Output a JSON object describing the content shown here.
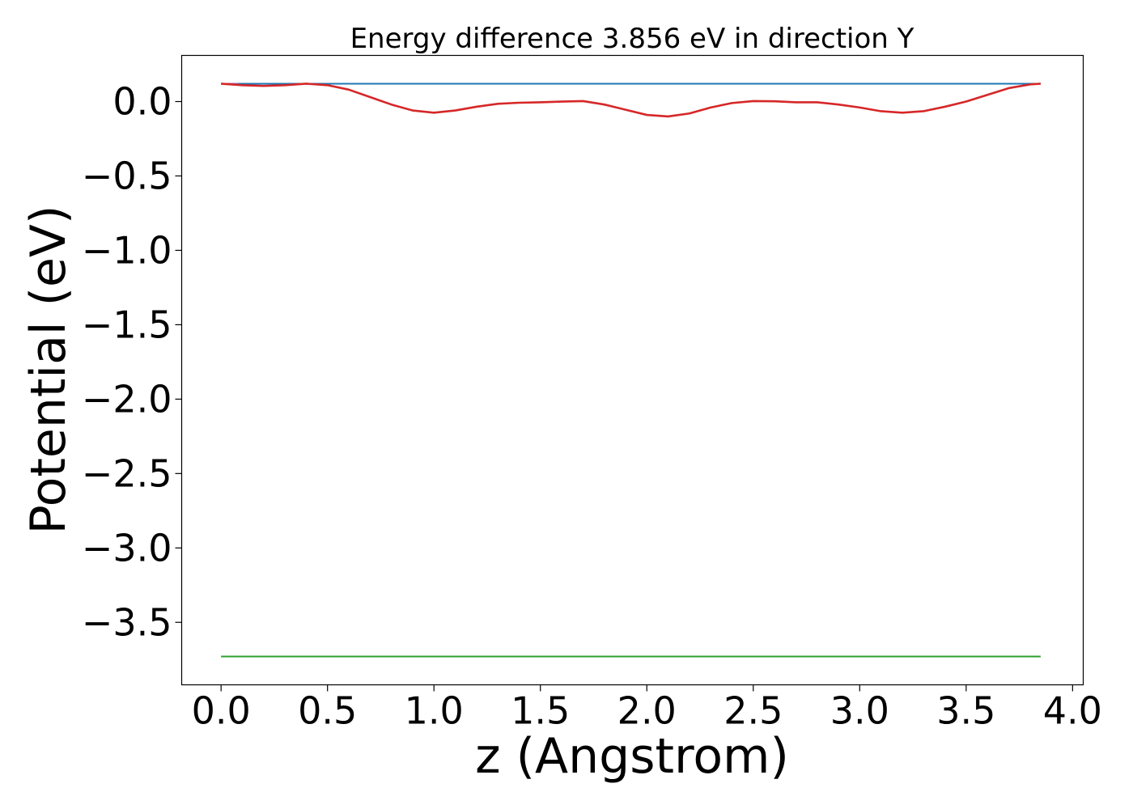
{
  "chart_data": {
    "type": "line",
    "title": "Energy difference 3.856 eV in direction Y",
    "xlabel": "z (Angstrom)",
    "ylabel": "Potential (eV)",
    "xlim": [
      -0.185,
      4.05
    ],
    "ylim": [
      -3.92,
      0.31
    ],
    "xticks": [
      0.0,
      0.5,
      1.0,
      1.5,
      2.0,
      2.5,
      3.0,
      3.5,
      4.0
    ],
    "xtick_labels": [
      "0.0",
      "0.5",
      "1.0",
      "1.5",
      "2.0",
      "2.5",
      "3.0",
      "3.5",
      "4.0"
    ],
    "yticks": [
      0.0,
      -0.5,
      -1.0,
      -1.5,
      -2.0,
      -2.5,
      -3.0,
      -3.5
    ],
    "ytick_labels": [
      "0.0",
      "−0.5",
      "−1.0",
      "−1.5",
      "−2.0",
      "−2.5",
      "−3.0",
      "−3.5"
    ],
    "grid": false,
    "series": [
      {
        "color": "#1f77b4",
        "x": [
          0.0,
          3.85
        ],
        "y": [
          0.12,
          0.12
        ]
      },
      {
        "color": "#2ca02c",
        "x": [
          0.0,
          3.85
        ],
        "y": [
          -3.73,
          -3.73
        ]
      },
      {
        "color": "#9467bd",
        "x": [
          0.0,
          0.08
        ],
        "y": [
          0.12,
          0.12
        ]
      },
      {
        "color": "#d62728",
        "x": [
          0.0,
          0.1,
          0.2,
          0.3,
          0.4,
          0.5,
          0.6,
          0.7,
          0.8,
          0.9,
          1.0,
          1.1,
          1.2,
          1.3,
          1.4,
          1.5,
          1.6,
          1.7,
          1.8,
          1.9,
          2.0,
          2.1,
          2.2,
          2.3,
          2.4,
          2.5,
          2.6,
          2.7,
          2.8,
          2.9,
          3.0,
          3.1,
          3.2,
          3.3,
          3.4,
          3.5,
          3.6,
          3.7,
          3.8,
          3.85
        ],
        "y": [
          0.12,
          0.11,
          0.105,
          0.11,
          0.12,
          0.11,
          0.08,
          0.03,
          -0.02,
          -0.06,
          -0.075,
          -0.06,
          -0.035,
          -0.015,
          -0.008,
          -0.005,
          0.0,
          0.003,
          -0.02,
          -0.055,
          -0.09,
          -0.1,
          -0.08,
          -0.04,
          -0.01,
          0.003,
          0.002,
          -0.005,
          -0.005,
          -0.02,
          -0.04,
          -0.065,
          -0.075,
          -0.065,
          -0.035,
          0.0,
          0.045,
          0.09,
          0.115,
          0.12
        ]
      }
    ]
  }
}
